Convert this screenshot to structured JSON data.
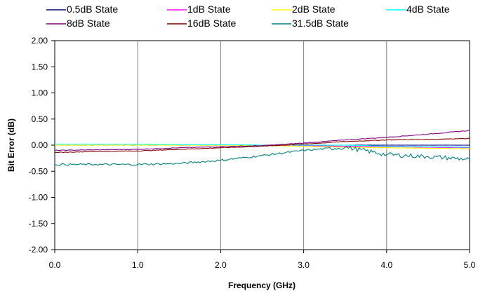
{
  "chart_data": {
    "type": "line",
    "xlabel": "Frequency (GHz)",
    "ylabel": "Bit Error (dB)",
    "xlim": [
      0,
      5
    ],
    "ylim": [
      -2,
      2
    ],
    "x_ticks": [
      "0.0",
      "1.0",
      "2.0",
      "3.0",
      "4.0",
      "5.0"
    ],
    "y_ticks": [
      "2.00",
      "1.50",
      "1.00",
      "0.50",
      "0.00",
      "-0.50",
      "-1.00",
      "-1.50",
      "-2.00"
    ],
    "grid": "vertical",
    "legend_position": "top",
    "x": [
      0.0,
      0.5,
      1.0,
      1.5,
      2.0,
      2.5,
      3.0,
      3.5,
      4.0,
      4.5,
      5.0
    ],
    "series": [
      {
        "name": "0.5dB State",
        "color": "#000080",
        "values": [
          0.0,
          0.0,
          0.0,
          0.0,
          0.0,
          0.0,
          0.0,
          0.0,
          0.0,
          0.0,
          0.0
        ]
      },
      {
        "name": "1dB State",
        "color": "#FF00FF",
        "values": [
          0.0,
          0.0,
          0.0,
          0.0,
          0.0,
          0.0,
          -0.01,
          -0.02,
          -0.03,
          -0.04,
          -0.05
        ]
      },
      {
        "name": "2dB State",
        "color": "#FFFF00",
        "values": [
          0.0,
          0.0,
          0.0,
          0.0,
          0.0,
          -0.01,
          -0.02,
          -0.04,
          -0.05,
          -0.06,
          -0.07
        ]
      },
      {
        "name": "4dB State",
        "color": "#00FFFF",
        "values": [
          0.02,
          0.02,
          0.02,
          0.01,
          0.01,
          0.0,
          0.0,
          0.0,
          -0.02,
          -0.03,
          -0.04
        ]
      },
      {
        "name": "8dB State",
        "color": "#800080",
        "values": [
          -0.1,
          -0.09,
          -0.08,
          -0.05,
          -0.03,
          -0.01,
          0.04,
          0.1,
          0.15,
          0.21,
          0.28
        ]
      },
      {
        "name": "16dB State",
        "color": "#800000",
        "values": [
          -0.14,
          -0.12,
          -0.11,
          -0.08,
          -0.05,
          -0.02,
          0.02,
          0.07,
          0.1,
          0.11,
          0.13
        ]
      },
      {
        "name": "31.5dB State",
        "color": "#008080",
        "values": [
          -0.37,
          -0.37,
          -0.37,
          -0.35,
          -0.29,
          -0.2,
          -0.1,
          -0.04,
          -0.18,
          -0.22,
          -0.27
        ]
      }
    ]
  }
}
